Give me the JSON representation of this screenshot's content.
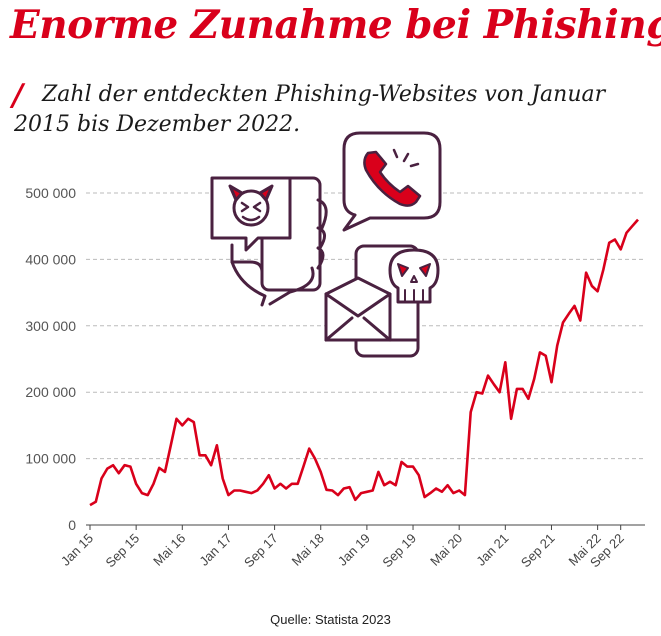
{
  "header": {
    "title": "Enorme Zunahme bei Phishing",
    "slash": "/",
    "subtitle": "Zahl der entdeckten Phishing-Websites von Januar 2015 bis Dezember 2022."
  },
  "footer": {
    "source": "Quelle: Statista 2023"
  },
  "colors": {
    "accent": "#d9001b",
    "icon_stroke": "#4a2140",
    "grid": "#bbbbbb"
  },
  "illustration": {
    "icons": [
      "speech-bubble-devil-icon",
      "hand-holding-phone-icon",
      "phone-call-bubble-icon",
      "envelope-icon",
      "skull-icon",
      "smartphone-icon"
    ]
  },
  "chart_data": {
    "type": "line",
    "title": "",
    "xlabel": "",
    "ylabel": "",
    "grid": true,
    "ylim": [
      0,
      500000
    ],
    "yticks": [
      0,
      100000,
      200000,
      300000,
      400000,
      500000
    ],
    "ytick_labels": [
      "0",
      "100 000",
      "200 000",
      "300 000",
      "400 000",
      "500 000"
    ],
    "xtick_labels": [
      "Jan 15",
      "Sep 15",
      "Mai 16",
      "Jan 17",
      "Sep 17",
      "Mai 18",
      "Jan 19",
      "Sep 19",
      "Mai 20",
      "Jan 21",
      "Sep 21",
      "Mai 22",
      "Sep 22"
    ],
    "xtick_month_index": [
      0,
      8,
      16,
      24,
      32,
      40,
      48,
      56,
      64,
      72,
      80,
      88,
      92
    ],
    "x_start": "Jan 2015",
    "x_end": "Dez 2022",
    "series": [
      {
        "color": "#d9001b",
        "values": [
          30000,
          35000,
          70000,
          85000,
          90000,
          78000,
          90000,
          88000,
          62000,
          48000,
          45000,
          62000,
          86000,
          80000,
          120000,
          160000,
          150000,
          160000,
          155000,
          105000,
          105000,
          90000,
          120000,
          70000,
          45000,
          52000,
          52000,
          50000,
          48000,
          52000,
          62000,
          75000,
          55000,
          62000,
          55000,
          62000,
          62000,
          88000,
          115000,
          100000,
          80000,
          53000,
          52000,
          45000,
          55000,
          57000,
          38000,
          48000,
          50000,
          52000,
          80000,
          60000,
          65000,
          60000,
          95000,
          88000,
          88000,
          75000,
          42000,
          48000,
          55000,
          50000,
          60000,
          48000,
          52000,
          45000,
          170000,
          200000,
          198000,
          225000,
          212000,
          200000,
          245000,
          160000,
          205000,
          205000,
          190000,
          220000,
          260000,
          255000,
          215000,
          270000,
          305000,
          318000,
          330000,
          308000,
          380000,
          360000,
          352000,
          385000,
          425000,
          430000,
          415000,
          440000,
          450000,
          460000
        ]
      }
    ]
  }
}
